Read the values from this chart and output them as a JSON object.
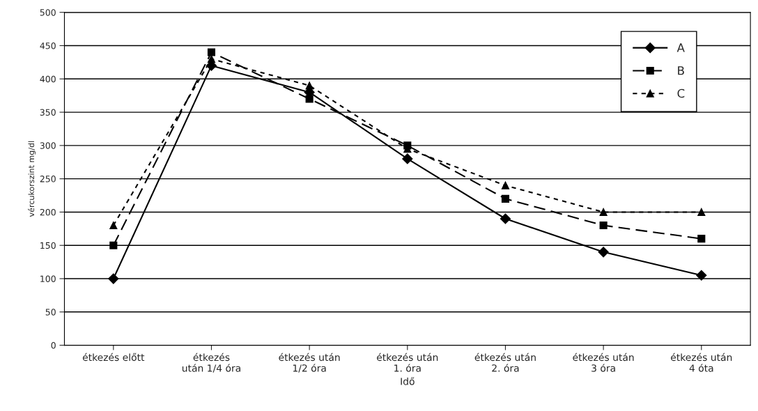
{
  "chart_data": {
    "type": "line",
    "xlabel": "Idő",
    "ylabel": "vércukorszint mg/dl",
    "categories": [
      "étkezés előtt",
      "étkezés\nután 1/4 óra",
      "étkezés után\n1/2 óra",
      "étkezés után\n1. óra",
      "étkezés után\n2. óra",
      "étkezés után\n3 óra",
      "étkezés után\n4 óta"
    ],
    "series": [
      {
        "name": "A",
        "color": "#000000",
        "marker": "diamond",
        "line_style": "solid",
        "values": [
          100,
          420,
          380,
          280,
          190,
          140,
          105
        ]
      },
      {
        "name": "B",
        "color": "#000000",
        "marker": "square",
        "line_style": "dashed",
        "values": [
          150,
          440,
          370,
          300,
          220,
          180,
          160
        ]
      },
      {
        "name": "C",
        "color": "#000000",
        "marker": "triangle",
        "line_style": "dotted",
        "values": [
          180,
          430,
          390,
          295,
          240,
          200,
          200
        ]
      }
    ],
    "ylim": [
      0,
      500
    ],
    "yticks": [
      0,
      50,
      100,
      150,
      200,
      250,
      300,
      350,
      400,
      450,
      500
    ],
    "grid": "y",
    "legend": "top right"
  }
}
